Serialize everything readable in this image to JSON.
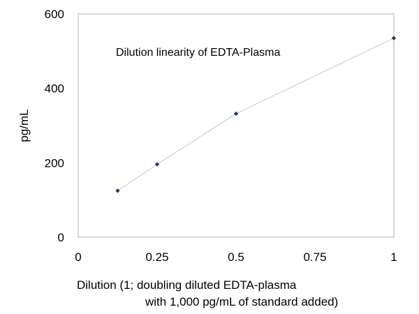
{
  "chart_data": {
    "type": "line",
    "annotation": "Dilution linearity of EDTA-Plasma",
    "xlabel_lines": [
      "Dilution (1; doubling diluted EDTA-plasma",
      "with 1,000 pg/mL of standard added)"
    ],
    "ylabel": "pg/mL",
    "x_ticks": [
      "0",
      "0.25",
      "0.5",
      "0.75",
      "1"
    ],
    "y_ticks": [
      "0",
      "200",
      "400",
      "600"
    ],
    "xlim": [
      0,
      1
    ],
    "ylim": [
      0,
      600
    ],
    "grid": false,
    "legend": "none",
    "series": [
      {
        "x": [
          0.125,
          0.25,
          0.5,
          1
        ],
        "y": [
          125,
          196,
          332,
          535
        ],
        "line_color": "#c8c8c8",
        "marker_color": "#1f3a6e",
        "marker": "diamond"
      }
    ]
  }
}
